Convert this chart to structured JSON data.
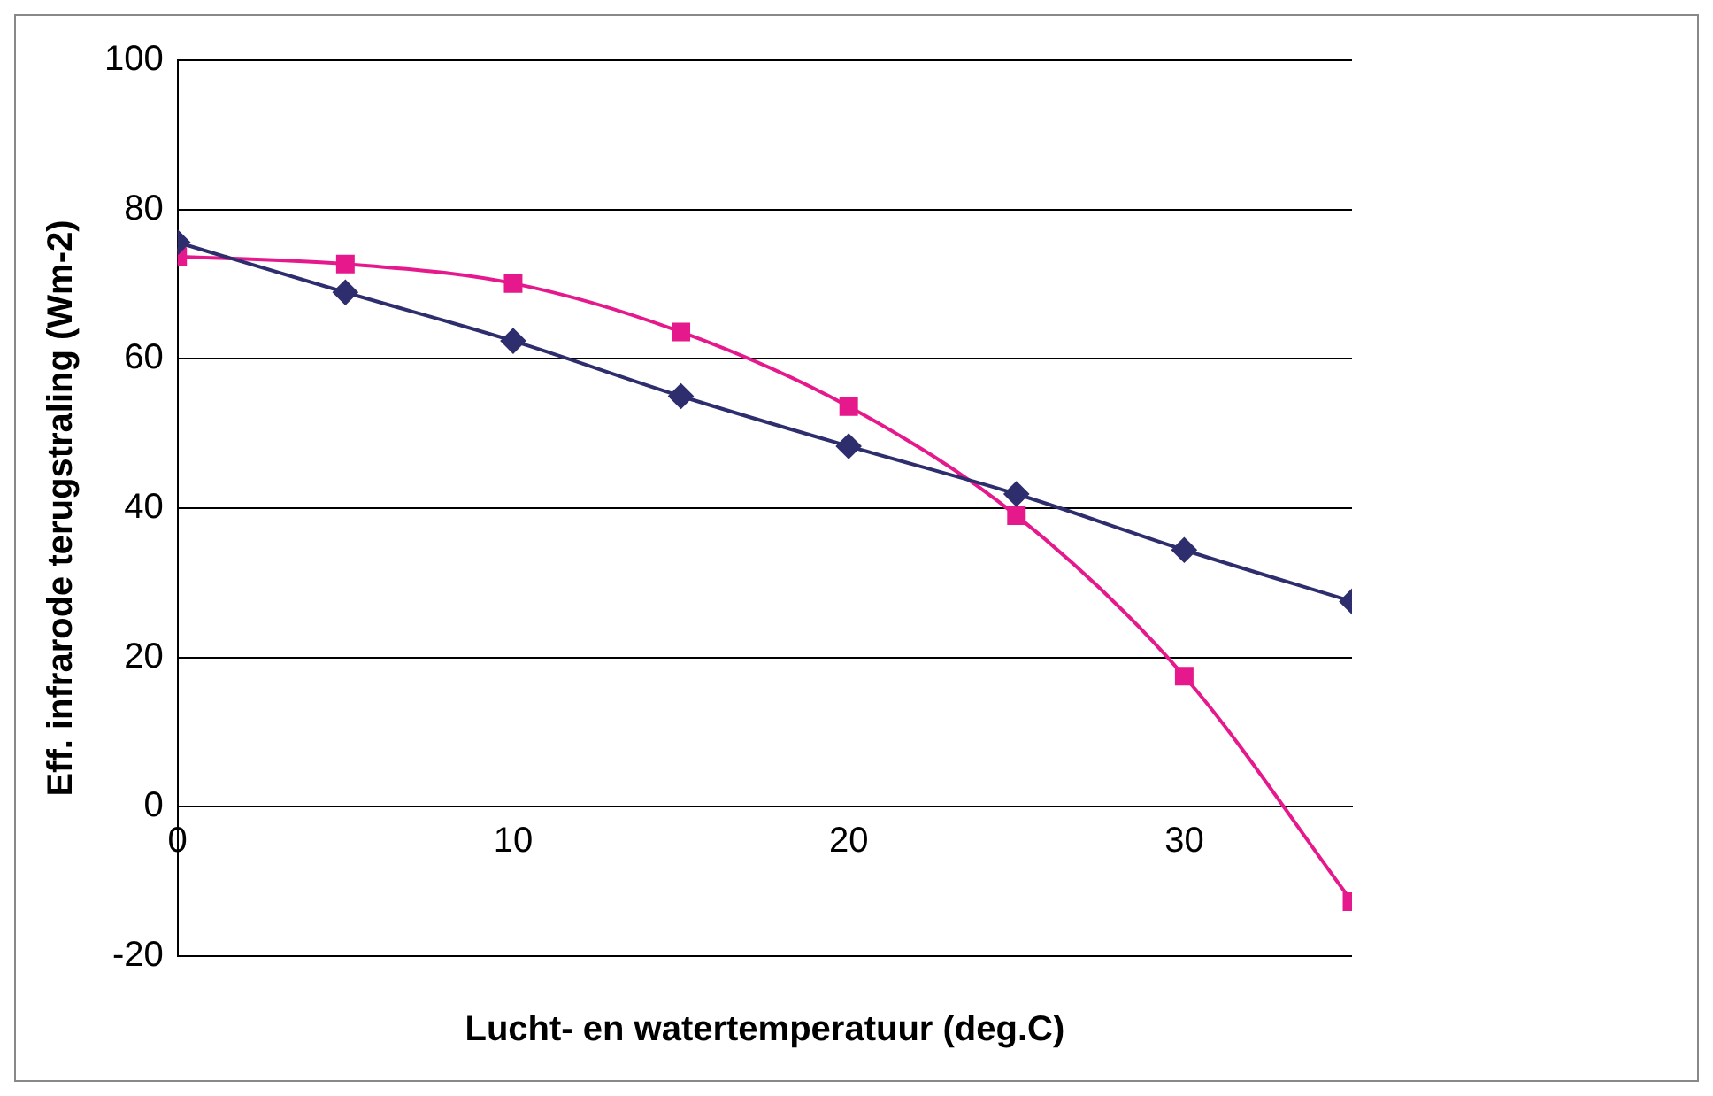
{
  "chart_data": {
    "type": "line",
    "xlabel": "Lucht- en watertemperatuur (deg.C)",
    "ylabel": "Eff. infrarode terugstraling (Wm-2)",
    "x": [
      0,
      5,
      10,
      15,
      20,
      25,
      30,
      35
    ],
    "series": [
      {
        "color": "#2e2e6e",
        "marker": "diamond",
        "values": [
          75.6,
          68.9,
          62.4,
          55,
          48.3,
          41.9,
          34.4,
          27.5
        ]
      },
      {
        "color": "#e6198c",
        "marker": "square",
        "values": [
          73.7,
          72.7,
          70.1,
          63.6,
          53.6,
          39,
          17.5,
          -12.7
        ]
      }
    ],
    "xlim": [
      0,
      35
    ],
    "xticks": [
      0,
      10,
      20,
      30
    ],
    "ylim": [
      -20,
      100
    ],
    "yticks": [
      -20,
      0,
      20,
      40,
      60,
      80,
      100
    ],
    "grid": "y",
    "legend": false
  }
}
